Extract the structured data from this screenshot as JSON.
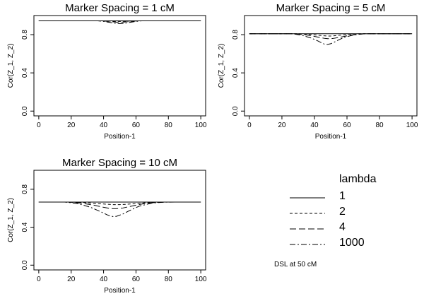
{
  "chart_data": [
    {
      "type": "line",
      "title": "Marker Spacing = 1 cM",
      "xlabel": "Position-1",
      "ylabel": "Cor(Z_1, Z_2)",
      "xlim": [
        -3,
        103
      ],
      "ylim": [
        -0.05,
        1.0
      ],
      "xticks": [
        0,
        20,
        40,
        60,
        80,
        100
      ],
      "yticks": [
        0.0,
        0.4,
        0.8
      ],
      "series": [
        {
          "name": "1",
          "x": [
            0,
            100
          ],
          "y": [
            0.945,
            0.945
          ]
        },
        {
          "name": "2",
          "x": [
            0,
            40,
            44,
            48,
            50,
            52,
            56,
            60,
            100
          ],
          "y": [
            0.945,
            0.945,
            0.942,
            0.939,
            0.938,
            0.939,
            0.942,
            0.945,
            0.945
          ]
        },
        {
          "name": "4",
          "x": [
            0,
            38,
            42,
            46,
            48,
            50,
            52,
            54,
            58,
            62,
            100
          ],
          "y": [
            0.945,
            0.945,
            0.94,
            0.934,
            0.931,
            0.93,
            0.931,
            0.934,
            0.94,
            0.945,
            0.945
          ]
        },
        {
          "name": "1000",
          "x": [
            0,
            36,
            40,
            44,
            46,
            48,
            50,
            52,
            54,
            56,
            60,
            64,
            100
          ],
          "y": [
            0.945,
            0.945,
            0.938,
            0.928,
            0.922,
            0.917,
            0.915,
            0.917,
            0.922,
            0.928,
            0.938,
            0.945,
            0.945
          ]
        }
      ]
    },
    {
      "type": "line",
      "title": "Marker Spacing = 5 cM",
      "xlabel": "Position-1",
      "ylabel": "Cor(Z_1, Z_2)",
      "xlim": [
        -3,
        103
      ],
      "ylim": [
        -0.05,
        1.0
      ],
      "xticks": [
        0,
        20,
        40,
        60,
        80,
        100
      ],
      "yticks": [
        0.0,
        0.4,
        0.8
      ],
      "series": [
        {
          "name": "1",
          "x": [
            0,
            100
          ],
          "y": [
            0.81,
            0.81
          ]
        },
        {
          "name": "2",
          "x": [
            0,
            30,
            36,
            42,
            46,
            48,
            50,
            52,
            56,
            62,
            68,
            100
          ],
          "y": [
            0.81,
            0.81,
            0.805,
            0.795,
            0.788,
            0.786,
            0.786,
            0.788,
            0.795,
            0.805,
            0.81,
            0.81
          ]
        },
        {
          "name": "4",
          "x": [
            0,
            28,
            34,
            40,
            44,
            46,
            48,
            50,
            52,
            56,
            62,
            68,
            72,
            100
          ],
          "y": [
            0.81,
            0.81,
            0.8,
            0.782,
            0.768,
            0.762,
            0.758,
            0.758,
            0.762,
            0.774,
            0.794,
            0.806,
            0.81,
            0.81
          ]
        },
        {
          "name": "1000",
          "x": [
            0,
            26,
            32,
            38,
            42,
            44,
            46,
            47,
            48,
            50,
            52,
            54,
            58,
            64,
            70,
            74,
            100
          ],
          "y": [
            0.81,
            0.81,
            0.795,
            0.765,
            0.735,
            0.718,
            0.702,
            0.697,
            0.698,
            0.705,
            0.72,
            0.738,
            0.77,
            0.797,
            0.808,
            0.81,
            0.81
          ]
        }
      ]
    },
    {
      "type": "line",
      "title": "Marker Spacing = 10 cM",
      "xlabel": "Position-1",
      "ylabel": "Cor(Z_1, Z_2)",
      "xlim": [
        -3,
        103
      ],
      "ylim": [
        -0.05,
        1.0
      ],
      "xticks": [
        0,
        20,
        40,
        60,
        80,
        100
      ],
      "yticks": [
        0.0,
        0.4,
        0.8
      ],
      "series": [
        {
          "name": "1",
          "x": [
            0,
            100
          ],
          "y": [
            0.665,
            0.665
          ]
        },
        {
          "name": "2",
          "x": [
            0,
            20,
            28,
            36,
            42,
            46,
            50,
            54,
            60,
            68,
            76,
            100
          ],
          "y": [
            0.665,
            0.665,
            0.66,
            0.65,
            0.642,
            0.638,
            0.638,
            0.641,
            0.65,
            0.66,
            0.665,
            0.665
          ]
        },
        {
          "name": "4",
          "x": [
            0,
            18,
            26,
            34,
            40,
            44,
            46,
            48,
            52,
            58,
            66,
            74,
            80,
            100
          ],
          "y": [
            0.665,
            0.665,
            0.655,
            0.632,
            0.61,
            0.598,
            0.595,
            0.595,
            0.603,
            0.625,
            0.652,
            0.663,
            0.665,
            0.665
          ]
        },
        {
          "name": "1000",
          "x": [
            0,
            16,
            24,
            32,
            38,
            42,
            44,
            46,
            48,
            52,
            56,
            62,
            70,
            78,
            84,
            100
          ],
          "y": [
            0.665,
            0.665,
            0.65,
            0.61,
            0.565,
            0.532,
            0.518,
            0.512,
            0.515,
            0.54,
            0.575,
            0.622,
            0.655,
            0.664,
            0.665,
            0.665
          ]
        }
      ]
    }
  ],
  "legend": {
    "title": "lambda",
    "items": [
      {
        "label": "1",
        "dash": "solid"
      },
      {
        "label": "2",
        "dash": "dashed"
      },
      {
        "label": "4",
        "dash": "longdash"
      },
      {
        "label": "1000",
        "dash": "dotdash"
      }
    ],
    "note": "DSL at 50 cM"
  }
}
